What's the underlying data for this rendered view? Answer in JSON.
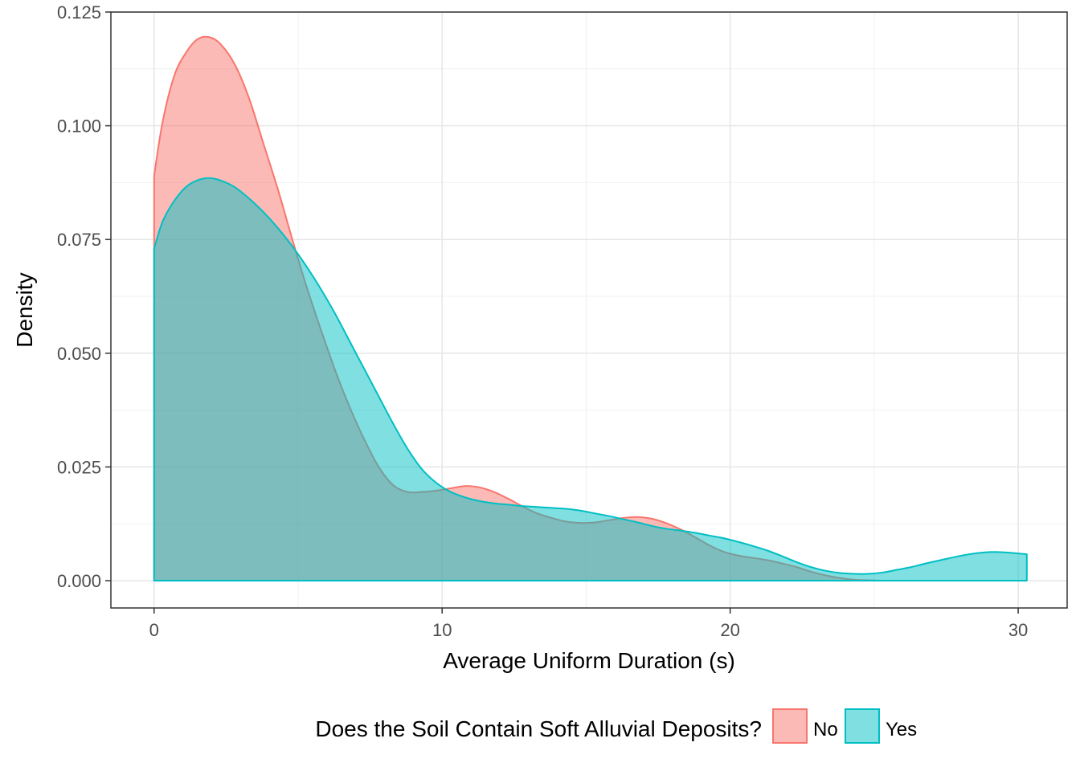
{
  "chart_data": {
    "type": "area",
    "xlabel": "Average Uniform Duration (s)",
    "ylabel": "Density",
    "xlim": [
      -1.5,
      31.7
    ],
    "ylim": [
      -0.006,
      0.125
    ],
    "x_ticks": [
      {
        "value": 0,
        "label": "0"
      },
      {
        "value": 10,
        "label": "10"
      },
      {
        "value": 20,
        "label": "20"
      },
      {
        "value": 30,
        "label": "30"
      }
    ],
    "y_ticks": [
      {
        "value": 0.0,
        "label": "0.000"
      },
      {
        "value": 0.025,
        "label": "0.025"
      },
      {
        "value": 0.05,
        "label": "0.050"
      },
      {
        "value": 0.075,
        "label": "0.075"
      },
      {
        "value": 0.1,
        "label": "0.100"
      },
      {
        "value": 0.125,
        "label": "0.125"
      }
    ],
    "grid": true,
    "legend": {
      "title": "Does the Soil Contain Soft Alluvial Deposits?",
      "position": "bottom"
    },
    "series": [
      {
        "name": "No",
        "fill": "#F8766D",
        "stroke": "#F8766D",
        "fill_opacity": 0.5,
        "x": [
          0,
          0.3,
          0.7,
          1.1,
          1.5,
          1.9,
          2.3,
          2.8,
          3.3,
          3.8,
          4.3,
          4.8,
          5.3,
          5.8,
          6.3,
          6.8,
          7.3,
          7.8,
          8.3,
          8.8,
          9.3,
          9.8,
          10.3,
          10.8,
          11.3,
          11.8,
          12.3,
          12.8,
          13.3,
          13.8,
          14.3,
          14.8,
          15.3,
          15.8,
          16.3,
          16.8,
          17.3,
          17.8,
          18.3,
          18.8,
          19.3,
          19.8,
          20.3,
          20.8,
          21.3,
          21.8,
          22.3,
          22.8,
          23.3,
          23.8,
          24.3,
          24.8,
          25.2
        ],
        "y": [
          0.089,
          0.101,
          0.111,
          0.116,
          0.119,
          0.1195,
          0.118,
          0.1135,
          0.106,
          0.096,
          0.086,
          0.075,
          0.0645,
          0.055,
          0.046,
          0.038,
          0.031,
          0.025,
          0.021,
          0.0195,
          0.0195,
          0.0198,
          0.0203,
          0.0208,
          0.0205,
          0.0195,
          0.018,
          0.0163,
          0.0148,
          0.0138,
          0.013,
          0.0127,
          0.0128,
          0.0133,
          0.0138,
          0.014,
          0.0136,
          0.0126,
          0.0112,
          0.0095,
          0.0077,
          0.0063,
          0.0055,
          0.005,
          0.0045,
          0.0038,
          0.003,
          0.002,
          0.0012,
          0.0006,
          0.0002,
          0.0001,
          0.0
        ]
      },
      {
        "name": "Yes",
        "fill": "#00BFC4",
        "stroke": "#00BFC4",
        "fill_opacity": 0.5,
        "x": [
          0,
          0.3,
          0.7,
          1.1,
          1.5,
          1.9,
          2.3,
          2.8,
          3.3,
          3.8,
          4.3,
          4.8,
          5.3,
          5.8,
          6.3,
          6.8,
          7.3,
          7.8,
          8.3,
          8.8,
          9.3,
          9.8,
          10.3,
          10.8,
          11.3,
          11.8,
          12.3,
          12.8,
          13.3,
          13.8,
          14.3,
          14.8,
          15.3,
          15.8,
          16.3,
          16.8,
          17.3,
          17.8,
          18.3,
          18.8,
          19.3,
          19.8,
          20.3,
          20.8,
          21.3,
          21.8,
          22.3,
          22.8,
          23.3,
          23.8,
          24.3,
          24.8,
          25.3,
          25.8,
          26.3,
          26.8,
          27.3,
          27.8,
          28.3,
          28.8,
          29.3,
          29.8,
          30.3
        ],
        "y": [
          0.073,
          0.079,
          0.0835,
          0.0865,
          0.088,
          0.0885,
          0.088,
          0.0865,
          0.084,
          0.081,
          0.0775,
          0.0735,
          0.069,
          0.064,
          0.0585,
          0.0525,
          0.0465,
          0.0405,
          0.0345,
          0.029,
          0.0245,
          0.0215,
          0.0195,
          0.0183,
          0.0175,
          0.017,
          0.0167,
          0.0164,
          0.0162,
          0.016,
          0.0158,
          0.0154,
          0.0148,
          0.0142,
          0.0135,
          0.0128,
          0.012,
          0.0114,
          0.011,
          0.0105,
          0.0099,
          0.0093,
          0.0085,
          0.0076,
          0.0066,
          0.0054,
          0.0041,
          0.003,
          0.0022,
          0.0017,
          0.0015,
          0.0015,
          0.0018,
          0.0024,
          0.003,
          0.0038,
          0.0045,
          0.0052,
          0.0058,
          0.0062,
          0.0063,
          0.0061,
          0.0058
        ]
      }
    ]
  }
}
